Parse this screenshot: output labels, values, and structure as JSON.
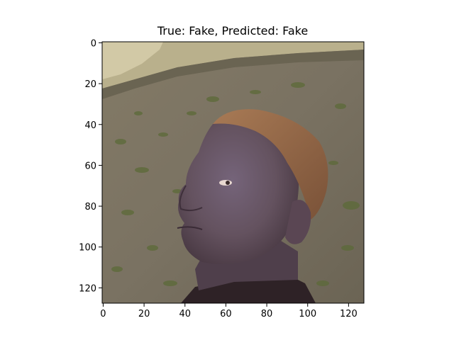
{
  "chart_data": {
    "type": "image",
    "title": "True: Fake, Predicted: Fake",
    "x_ticks": [
      0,
      20,
      40,
      60,
      80,
      100,
      120
    ],
    "y_ticks": [
      0,
      20,
      40,
      60,
      80,
      100,
      120
    ],
    "xlim": [
      -0.5,
      127.5
    ],
    "ylim": [
      127.5,
      -0.5
    ],
    "image_description_colors": {
      "wall": "#7a7262",
      "wall_dark": "#5d5848",
      "moss": "#5f6a3a",
      "sky_foliage": "#c8c0a0",
      "skin": "#6b5866",
      "skin_shadow": "#4a3b48",
      "hair": "#9b6a4a",
      "clothing": "#2e2226"
    }
  }
}
